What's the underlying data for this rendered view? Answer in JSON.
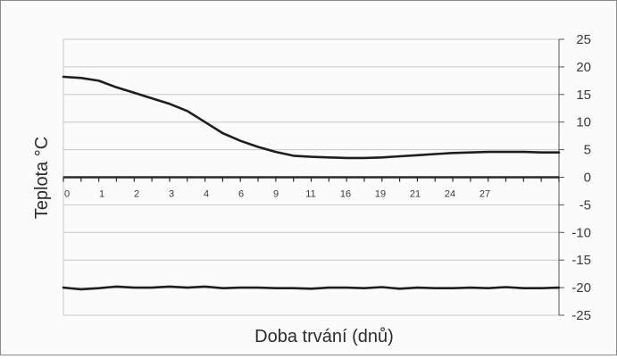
{
  "chart_data": {
    "type": "line",
    "title": "",
    "xlabel": "Doba trvání (dnů)",
    "ylabel": "Teplota °C",
    "ylim": [
      -25,
      25
    ],
    "y_ticks": [
      25,
      20,
      15,
      10,
      5,
      0,
      -5,
      -10,
      -15,
      -20,
      -25
    ],
    "x_tick_labels": [
      "0",
      "1",
      "2",
      "3",
      "4",
      "6",
      "9",
      "11",
      "16",
      "19",
      "21",
      "24",
      "27"
    ],
    "grid": true,
    "legend": "none",
    "colors": {
      "line": "#1e1e1e",
      "grid": "#c8c8c8",
      "axis": "#2a2a2a"
    },
    "series": [
      {
        "x": [
          0,
          0.5,
          1,
          1.5,
          2,
          2.5,
          3,
          3.5,
          4,
          4.5,
          5,
          5.5,
          6,
          6.5,
          7,
          7.5,
          8,
          8.5,
          9,
          9.5,
          10,
          10.5,
          11,
          11.5,
          12,
          12.5,
          13,
          13.5,
          14
        ],
        "values": [
          18.2,
          18,
          17.5,
          16.3,
          15.3,
          14.3,
          13.3,
          12,
          10,
          8,
          6.6,
          5.5,
          4.6,
          3.9,
          3.7,
          3.6,
          3.5,
          3.5,
          3.6,
          3.8,
          4,
          4.2,
          4.4,
          4.5,
          4.6,
          4.6,
          4.6,
          4.5,
          4.5
        ]
      },
      {
        "x": [
          0,
          0.5,
          1,
          1.5,
          2,
          2.5,
          3,
          3.5,
          4,
          4.5,
          5,
          5.5,
          6,
          6.5,
          7,
          7.5,
          8,
          8.5,
          9,
          9.5,
          10,
          10.5,
          11,
          11.5,
          12,
          12.5,
          13,
          13.5,
          14
        ],
        "values": [
          -20,
          -20.3,
          -20.1,
          -19.8,
          -20,
          -20,
          -19.8,
          -20,
          -19.8,
          -20.1,
          -20,
          -20,
          -20.1,
          -20.1,
          -20.2,
          -20,
          -20,
          -20.1,
          -19.9,
          -20.2,
          -20,
          -20.1,
          -20.1,
          -20,
          -20.1,
          -19.9,
          -20.1,
          -20.1,
          -20
        ]
      }
    ]
  }
}
